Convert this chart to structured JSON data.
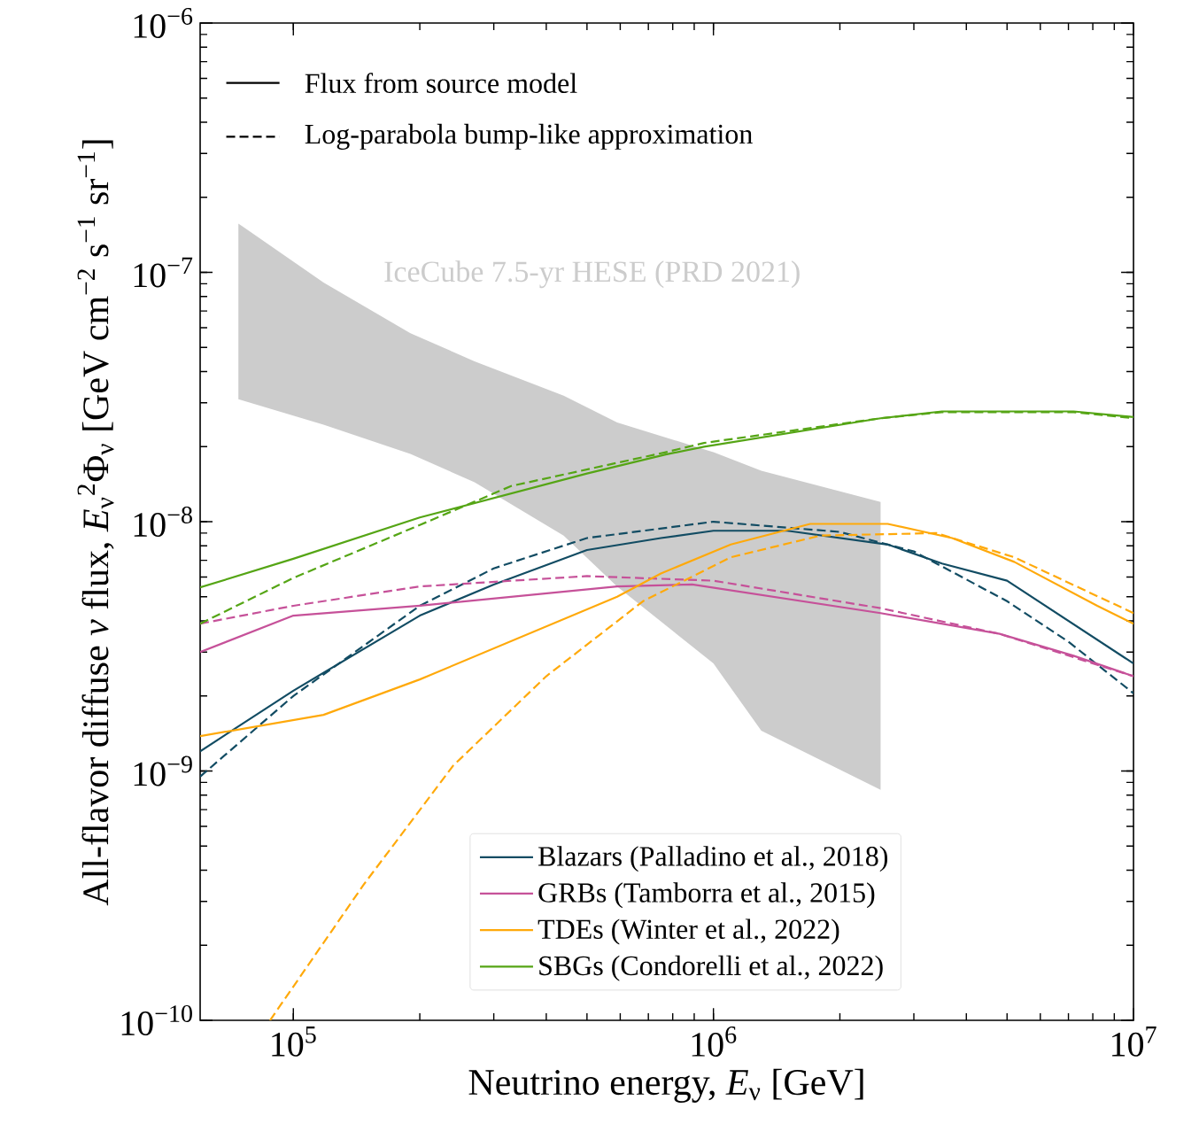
{
  "chart_data": {
    "type": "line",
    "xlabel": "Neutrino energy, *E*$_{ν}$ [GeV]",
    "ylabel": "All-flavor diffuse *ν* flux, *E*$_{ν}$$^{2}$Φ$_{ν}$ [GeV cm$^{−2}$ s$^{−1}$ sr$^{−1}$]",
    "log": "xy",
    "xlim": [
      60000,
      10000000
    ],
    "ylim": [
      1e-10,
      1e-06
    ],
    "xticks": [
      {
        "value": 100000,
        "label": "10$^{5}$"
      },
      {
        "value": 1000000,
        "label": "10$^{6}$"
      },
      {
        "value": 10000000,
        "label": "10$^{7}$"
      }
    ],
    "yticks": [
      {
        "value": 1e-10,
        "label": "10$^{−10}$"
      },
      {
        "value": 1e-09,
        "label": "10$^{−9}$"
      },
      {
        "value": 1e-08,
        "label": "10$^{−8}$"
      },
      {
        "value": 1e-07,
        "label": "10$^{−7}$"
      },
      {
        "value": 1e-06,
        "label": "10$^{−6}$"
      }
    ],
    "legend": "bottom",
    "annotations": [
      "Flux from source model",
      "Log-parabola bump-like approximation"
    ],
    "series": [
      {
        "type": "area",
        "name": "IceCube 7.5-yr HESE (PRD 2021)",
        "color": "#cccccc",
        "x": [
          74000,
          118000,
          190000,
          270000,
          440000,
          590000,
          1000000,
          1300000,
          2500000
        ],
        "values": [
          null,
          null,
          null,
          null,
          null,
          null,
          null,
          null,
          null
        ],
        "lower": [
          3.1e-08,
          2.45e-08,
          1.87e-08,
          1.44e-08,
          8.8e-09,
          5.5e-09,
          2.7e-09,
          1.45e-09,
          8.4e-10
        ],
        "upper": [
          1.57e-07,
          9.1e-08,
          5.7e-08,
          4.4e-08,
          3.2e-08,
          2.5e-08,
          1.9e-08,
          1.6e-08,
          1.2e-08
        ]
      },
      {
        "name": "Blazars (Palladino et al., 2018)",
        "color": "#124c63",
        "line_style": "solid",
        "x": [
          60000,
          100000,
          200000,
          300000,
          500000,
          750000,
          1000000,
          1500000,
          2600000,
          3500000,
          5000000,
          10000000
        ],
        "values": [
          1.2e-09,
          2.1e-09,
          4.2e-09,
          5.6e-09,
          7.7e-09,
          8.6e-09,
          9.2e-09,
          9.2e-09,
          8.1e-09,
          6.8e-09,
          5.8e-09,
          2.7e-09
        ]
      },
      {
        "color": "#124c63",
        "line_style": "dashed",
        "x": [
          60000,
          100000,
          200000,
          300000,
          500000,
          1000000,
          2000000,
          3000000,
          5000000,
          7000000,
          10000000
        ],
        "values": [
          9.5e-10,
          2e-09,
          4.6e-09,
          6.5e-09,
          8.6e-09,
          1e-08,
          9.1e-09,
          7.6e-09,
          4.8e-09,
          3.3e-09,
          2.05e-09
        ]
      },
      {
        "name": "GRBs (Tamborra et al., 2015)",
        "color": "#c65199",
        "line_style": "solid",
        "x": [
          60000,
          100000,
          200000,
          590000,
          890000,
          2500000,
          4800000,
          7200000,
          10000000
        ],
        "values": [
          3e-09,
          4.2e-09,
          4.6e-09,
          5.5e-09,
          5.6e-09,
          4.3e-09,
          3.55e-09,
          2.9e-09,
          2.4e-09
        ]
      },
      {
        "color": "#c65199",
        "line_style": "dashed",
        "x": [
          60000,
          100000,
          200000,
          500000,
          1000000,
          2500000,
          4800000,
          10000000
        ],
        "values": [
          3.9e-09,
          4.6e-09,
          5.5e-09,
          6.05e-09,
          5.8e-09,
          4.5e-09,
          3.55e-09,
          2.4e-09
        ]
      },
      {
        "name": "TDEs (Winter et al., 2022)",
        "color": "#ffa90a",
        "line_style": "solid",
        "x": [
          60000,
          118000,
          200000,
          590000,
          750000,
          1100000,
          1700000,
          2600000,
          3700000,
          5200000,
          8200000,
          10000000
        ],
        "values": [
          1.38e-09,
          1.68e-09,
          2.33e-09,
          5e-09,
          6.2e-09,
          8.1e-09,
          9.8e-09,
          9.8e-09,
          8.6e-09,
          6.9e-09,
          4.6e-09,
          3.9e-09
        ]
      },
      {
        "color": "#ffa90a",
        "line_style": "dashed",
        "x": [
          88000,
          147000,
          240000,
          400000,
          680000,
          1100000,
          1800000,
          3400000,
          5200000,
          10000000
        ],
        "values": [
          1e-10,
          3.5e-10,
          1.05e-09,
          2.4e-09,
          4.8e-09,
          7.2e-09,
          8.8e-09,
          9e-09,
          7.2e-09,
          4.3e-09
        ]
      },
      {
        "name": "SBGs (Condorelli et al., 2022)",
        "color": "#55a515",
        "line_style": "solid",
        "x": [
          60000,
          100000,
          200000,
          500000,
          770000,
          950000,
          2500000,
          3500000,
          7200000,
          10000000
        ],
        "values": [
          5.45e-09,
          7.1e-09,
          1.04e-08,
          1.56e-08,
          1.86e-08,
          2e-08,
          2.6e-08,
          2.77e-08,
          2.77e-08,
          2.63e-08
        ]
      },
      {
        "color": "#55a515",
        "line_style": "dashed",
        "x": [
          60000,
          100000,
          200000,
          330000,
          770000,
          950000,
          2500000,
          3500000,
          7200000,
          10000000
        ],
        "values": [
          3.9e-09,
          5.95e-09,
          9.7e-09,
          1.39e-08,
          1.9e-08,
          2.07e-08,
          2.6e-08,
          2.75e-08,
          2.75e-08,
          2.6e-08
        ]
      }
    ]
  }
}
